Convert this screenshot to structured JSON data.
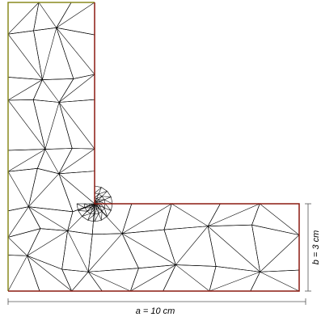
{
  "dimensions": {
    "a": "a = 10 cm",
    "b": "b = 3 cm"
  }
}
